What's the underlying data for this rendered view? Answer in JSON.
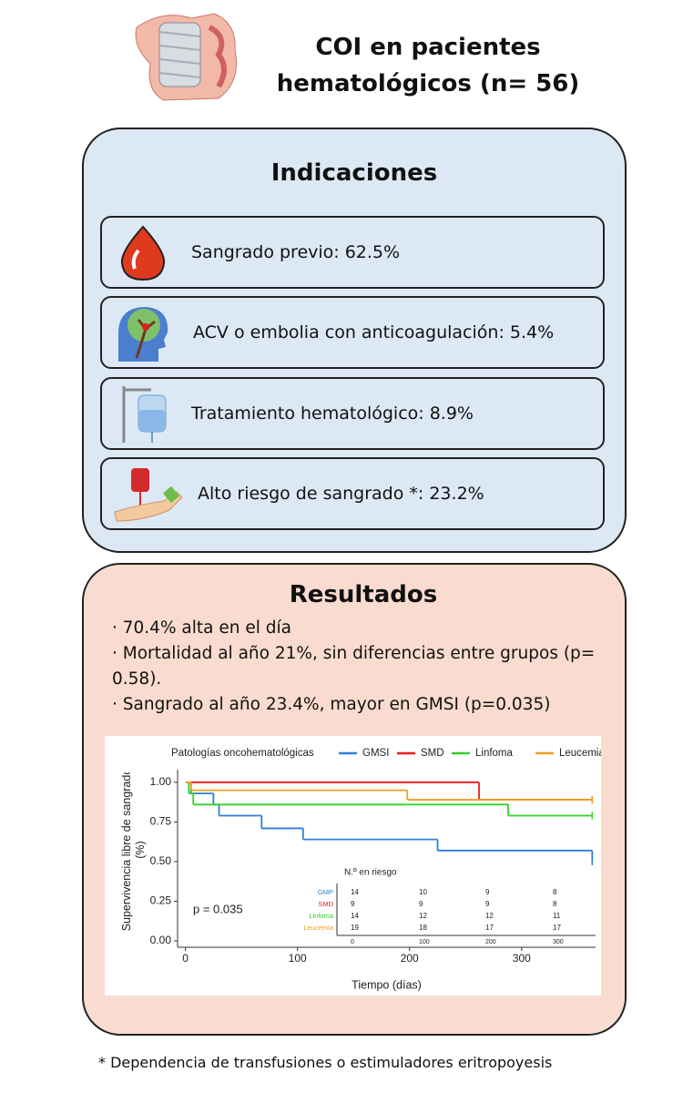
{
  "header": {
    "title": "COI en pacientes hematológicos (n= 56)"
  },
  "indications": {
    "title": "Indicaciones",
    "items": [
      "Sangrado previo: 62.5%",
      "ACV o embolia con anticoagulación: 5.4%",
      "Tratamiento hematológico: 8.9%",
      "Alto riesgo de  sangrado *: 23.2%"
    ]
  },
  "results": {
    "title": "Resultados",
    "bullets": [
      "· 70.4% alta en el día",
      "· Mortalidad al año 21%, sin diferencias entre grupos (p= 0.58).",
      "· Sangrado al año 23.4%, mayor en GMSI (p=0.035)"
    ]
  },
  "chart_data": {
    "type": "step",
    "legend_title": "Patologías oncohematológicas",
    "x_label": "Tiempo (días)",
    "y_label": "Supervivencia libre de sangrado (%)",
    "annotation": "p = 0.035",
    "xlim": [
      -7,
      366
    ],
    "ylim": [
      -0.04,
      1.08
    ],
    "xticks": [
      0,
      100,
      200,
      300
    ],
    "yticks": [
      {
        "value": 0,
        "label": "0.00"
      },
      {
        "value": 0.25,
        "label": "0.25"
      },
      {
        "value": 0.5,
        "label": "0.50"
      },
      {
        "value": 0.75,
        "label": "0.75"
      },
      {
        "value": 1,
        "label": "1.00"
      }
    ],
    "series": [
      {
        "name": "GMSI",
        "color": "#2f7fd6",
        "x": [
          0,
          5,
          25,
          30,
          68,
          105,
          225,
          363
        ],
        "values": [
          1.0,
          0.93,
          0.86,
          0.79,
          0.71,
          0.64,
          0.57,
          0.5
        ]
      },
      {
        "name": "SMD",
        "color": "#e8201a",
        "x": [
          0,
          262,
          363
        ],
        "values": [
          1.0,
          0.89,
          0.89
        ]
      },
      {
        "name": "Linfoma",
        "color": "#35cf2a",
        "x": [
          0,
          3,
          7,
          288,
          363
        ],
        "values": [
          1.0,
          0.93,
          0.86,
          0.79,
          0.79
        ]
      },
      {
        "name": "Leucemia",
        "color": "#f0a020",
        "x": [
          0,
          5,
          198,
          363
        ],
        "values": [
          1.0,
          0.95,
          0.89,
          0.89
        ]
      }
    ],
    "risk_table": {
      "title": "N.º en riesgo",
      "groups": [
        "GMP",
        "SMD",
        "Linfoma",
        "Leucemia"
      ],
      "rows": [
        [
          "14",
          "10",
          "9",
          "8"
        ],
        [
          "9",
          "9",
          "9",
          "8"
        ],
        [
          "14",
          "12",
          "12",
          "11"
        ],
        [
          "19",
          "18",
          "17",
          "17"
        ]
      ],
      "times": [
        "0",
        "100",
        "200",
        "300"
      ]
    }
  },
  "footnote": "* Dependencia de transfusiones o estimuladores eritropoyesis"
}
